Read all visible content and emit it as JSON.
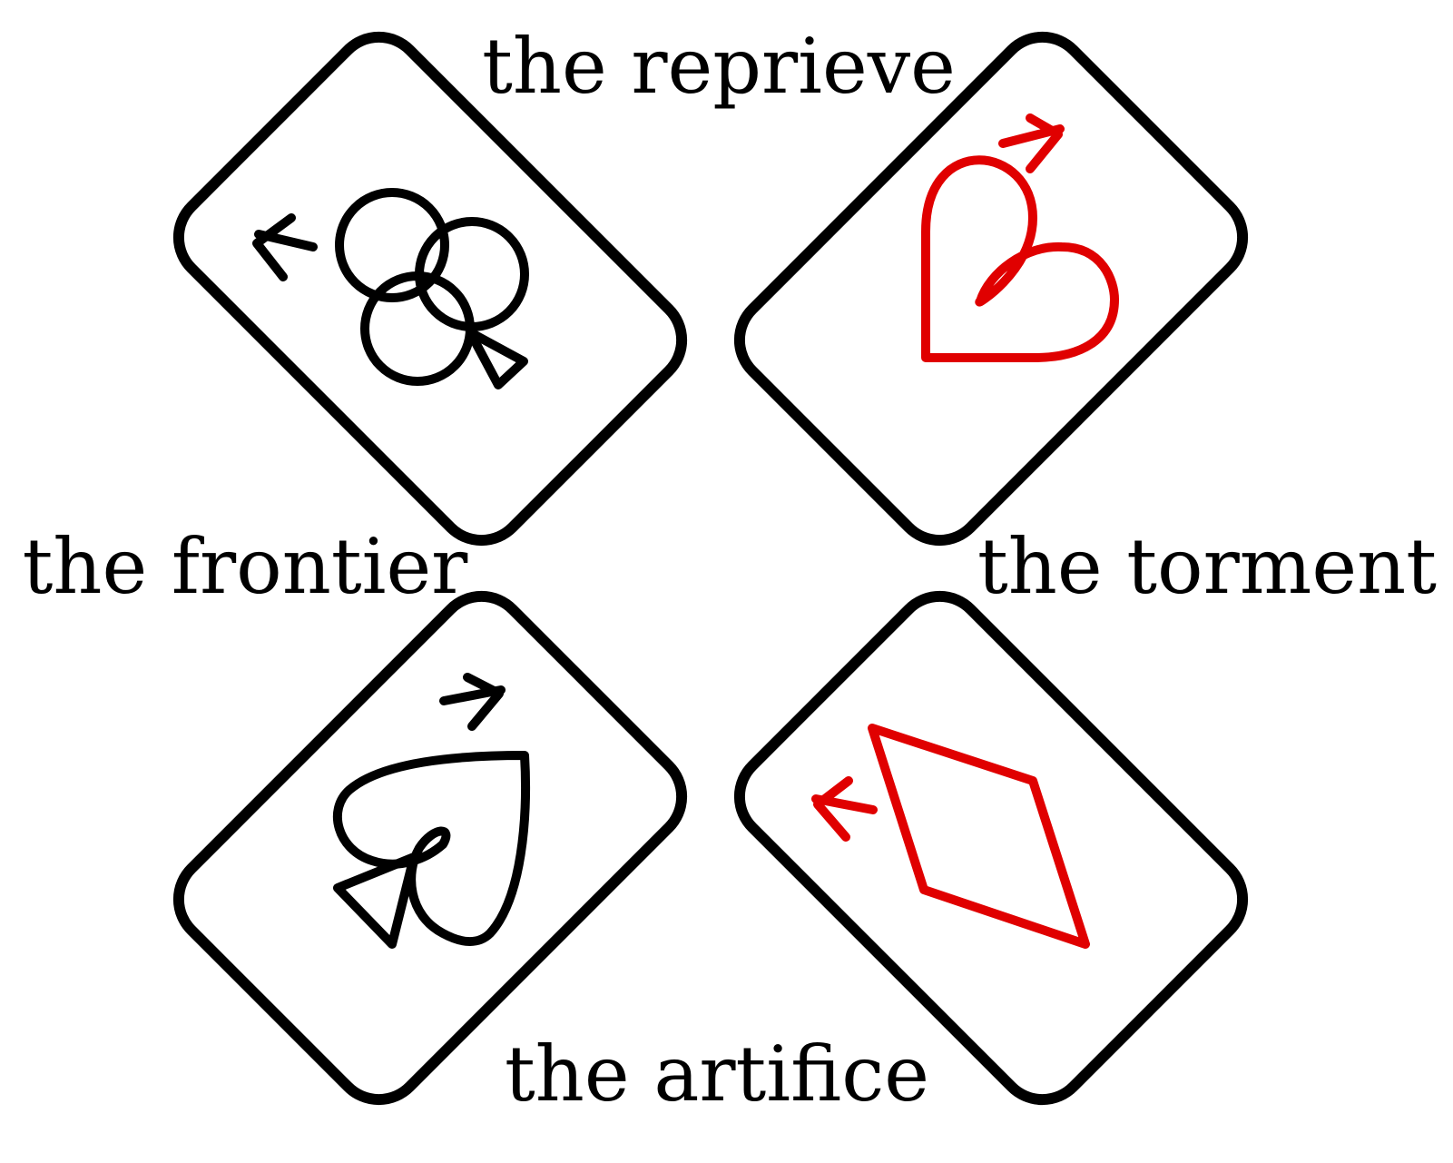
{
  "labels": {
    "top": "the reprieve",
    "left": "the frontier",
    "right": "the torment",
    "bottom": "the artifice"
  },
  "cards": [
    {
      "suit": "clubs",
      "rank": "A",
      "color": "#000000"
    },
    {
      "suit": "hearts",
      "rank": "A",
      "color": "#e00000"
    },
    {
      "suit": "spades",
      "rank": "A",
      "color": "#000000"
    },
    {
      "suit": "diamonds",
      "rank": "A",
      "color": "#e00000"
    }
  ]
}
